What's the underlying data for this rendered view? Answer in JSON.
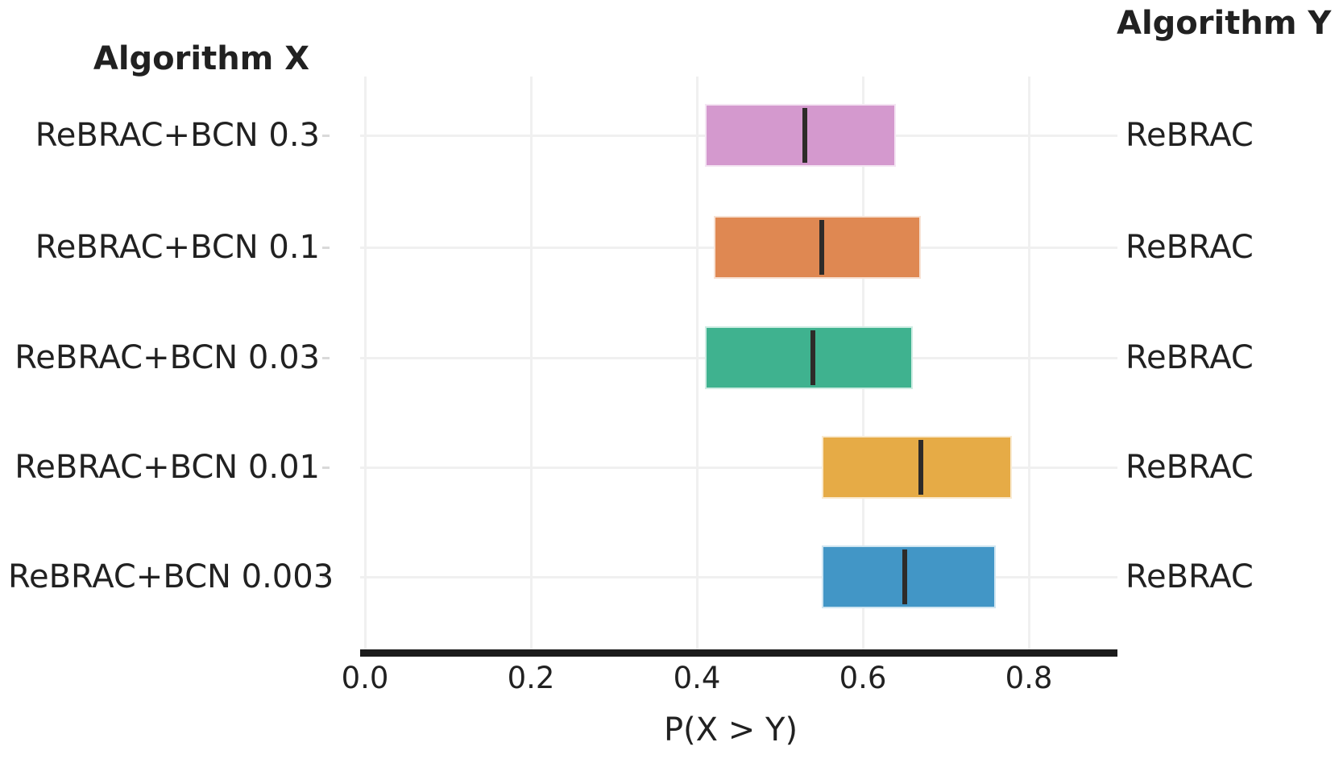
{
  "chart_data": {
    "type": "bar",
    "variant": "horizontal-interval-bars-with-median (probability of improvement plot)",
    "title": "",
    "xlabel": "P(X > Y)",
    "headers": {
      "left": "Algorithm X",
      "right": "Algorithm Y"
    },
    "x_ticks": [
      {
        "value": 0.0,
        "label": "0.0"
      },
      {
        "value": 0.2,
        "label": "0.2"
      },
      {
        "value": 0.4,
        "label": "0.4"
      },
      {
        "value": 0.6,
        "label": "0.6"
      },
      {
        "value": 0.8,
        "label": "0.8"
      }
    ],
    "xlim": [
      -0.006,
      0.907
    ],
    "grid": true,
    "legend": "none",
    "rows": [
      {
        "algorithm_x": "ReBRAC+BCN 0.3",
        "algorithm_y": "ReBRAC",
        "low": 0.41,
        "median": 0.53,
        "high": 0.64,
        "color": "#d499ce"
      },
      {
        "algorithm_x": "ReBRAC+BCN 0.1",
        "algorithm_y": "ReBRAC",
        "low": 0.42,
        "median": 0.55,
        "high": 0.67,
        "color": "#df8852"
      },
      {
        "algorithm_x": "ReBRAC+BCN 0.03",
        "algorithm_y": "ReBRAC",
        "low": 0.41,
        "median": 0.54,
        "high": 0.66,
        "color": "#3fb28f"
      },
      {
        "algorithm_x": "ReBRAC+BCN 0.01",
        "algorithm_y": "ReBRAC",
        "low": 0.55,
        "median": 0.67,
        "high": 0.78,
        "color": "#e6ab46"
      },
      {
        "algorithm_x": "ReBRAC+BCN 0.003",
        "algorithm_y": "ReBRAC",
        "low": 0.55,
        "median": 0.65,
        "high": 0.76,
        "color": "#4296c6"
      }
    ],
    "colors": {
      "axis": "#1b1b1b",
      "grid": "#f0f0f0",
      "median_line": "#2e2b29",
      "text": "#212121",
      "background": "#ffffff"
    }
  }
}
